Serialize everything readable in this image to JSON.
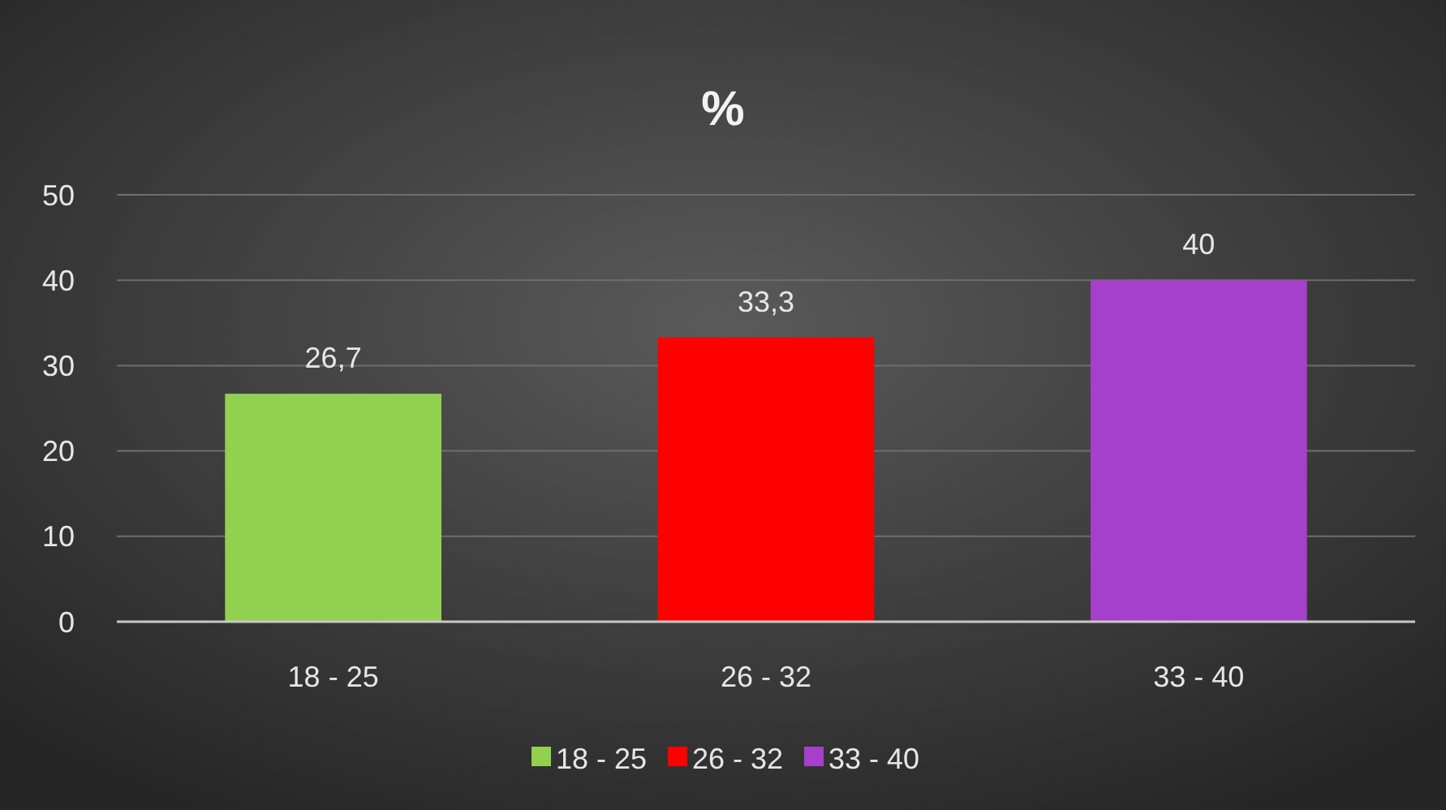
{
  "chart_data": {
    "type": "bar",
    "title": "%",
    "stacked": true,
    "categories": [
      "18 - 25",
      "26 - 32",
      "33 - 40"
    ],
    "series": [
      {
        "name": "18 - 25",
        "color": "#92d050",
        "values": [
          26.7,
          null,
          null
        ],
        "value_labels": [
          "26,7",
          null,
          null
        ]
      },
      {
        "name": "26 - 32",
        "color": "#ff0000",
        "values": [
          null,
          33.3,
          null
        ],
        "value_labels": [
          null,
          "33,3",
          null
        ]
      },
      {
        "name": "33 - 40",
        "color": "#a63fc9",
        "values": [
          null,
          null,
          40
        ],
        "value_labels": [
          null,
          null,
          "40"
        ]
      }
    ],
    "ylim": [
      0,
      50
    ],
    "yticks": [
      0,
      10,
      20,
      30,
      40,
      50
    ],
    "grid": "y",
    "legend": "bottom"
  }
}
